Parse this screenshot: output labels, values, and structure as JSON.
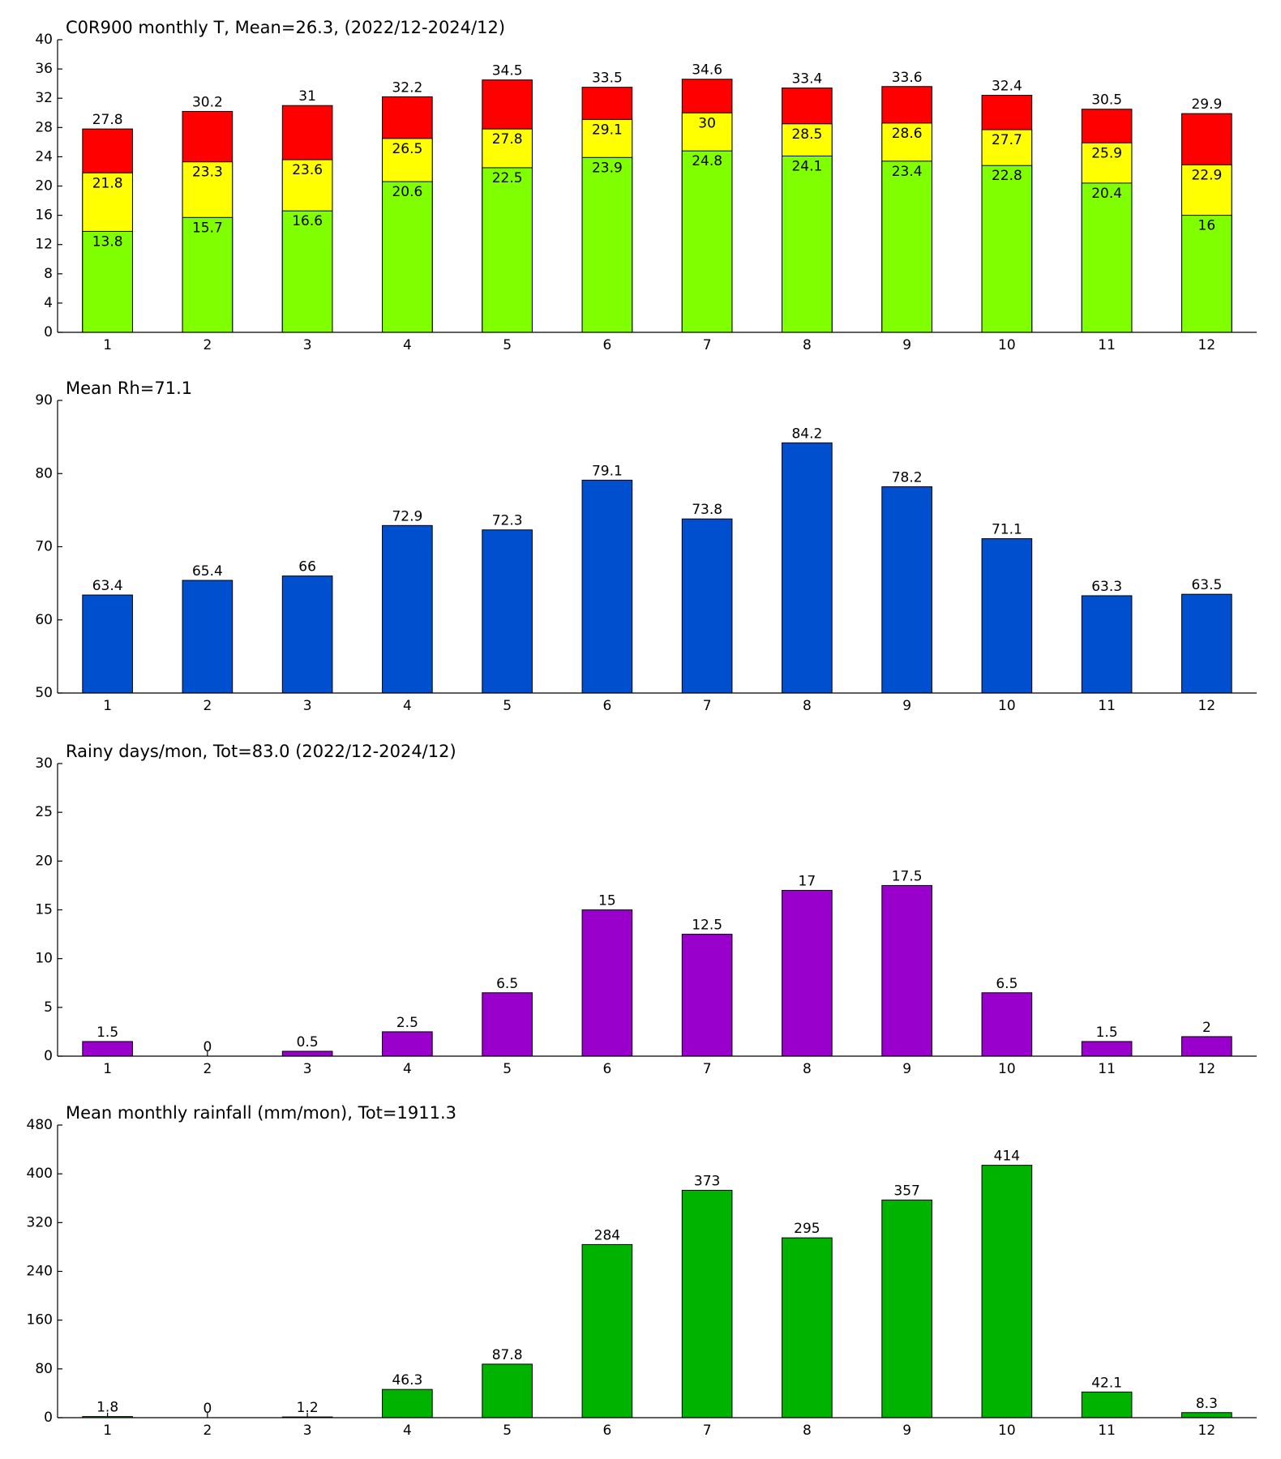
{
  "chart_data": [
    {
      "type": "bar",
      "title": "C0R900 monthly T, Mean=26.3, (2022/12-2024/12)",
      "categories": [
        "1",
        "2",
        "3",
        "4",
        "5",
        "6",
        "7",
        "8",
        "9",
        "10",
        "11",
        "12"
      ],
      "series": [
        {
          "color": "#ff0000",
          "values": [
            27.8,
            30.2,
            31,
            32.2,
            34.5,
            33.5,
            34.6,
            33.4,
            33.6,
            32.4,
            30.5,
            29.9
          ]
        },
        {
          "color": "#ffff00",
          "values": [
            21.8,
            23.3,
            23.6,
            26.5,
            27.8,
            29.1,
            30,
            28.5,
            28.6,
            27.7,
            25.9,
            22.9
          ]
        },
        {
          "color": "#80ff00",
          "values": [
            13.8,
            15.7,
            16.6,
            20.6,
            22.5,
            23.9,
            24.8,
            24.1,
            23.4,
            22.8,
            20.4,
            16
          ]
        }
      ],
      "ylim": [
        0,
        40
      ],
      "yticks": [
        0,
        4,
        8,
        12,
        16,
        20,
        24,
        28,
        32,
        36,
        40
      ]
    },
    {
      "type": "bar",
      "title": "Mean Rh=71.1",
      "categories": [
        "1",
        "2",
        "3",
        "4",
        "5",
        "6",
        "7",
        "8",
        "9",
        "10",
        "11",
        "12"
      ],
      "series": [
        {
          "color": "#004fcf",
          "values": [
            63.4,
            65.4,
            66,
            72.9,
            72.3,
            79.1,
            73.8,
            84.2,
            78.2,
            71.1,
            63.3,
            63.5
          ]
        }
      ],
      "ylim": [
        50,
        90
      ],
      "yticks": [
        50,
        60,
        70,
        80,
        90
      ]
    },
    {
      "type": "bar",
      "title": "Rainy days/mon, Tot=83.0 (2022/12-2024/12)",
      "categories": [
        "1",
        "2",
        "3",
        "4",
        "5",
        "6",
        "7",
        "8",
        "9",
        "10",
        "11",
        "12"
      ],
      "series": [
        {
          "color": "#9900cc",
          "values": [
            1.5,
            0,
            0.5,
            2.5,
            6.5,
            15,
            12.5,
            17,
            17.5,
            6.5,
            1.5,
            2
          ]
        }
      ],
      "ylim": [
        0,
        30
      ],
      "yticks": [
        0,
        5,
        10,
        15,
        20,
        25,
        30
      ]
    },
    {
      "type": "bar",
      "title": "Mean monthly rainfall (mm/mon), Tot=1911.3",
      "categories": [
        "1",
        "2",
        "3",
        "4",
        "5",
        "6",
        "7",
        "8",
        "9",
        "10",
        "11",
        "12"
      ],
      "series": [
        {
          "color": "#00b300",
          "values": [
            1.8,
            0,
            1.2,
            46.3,
            87.8,
            284,
            373,
            295,
            357,
            414,
            42.1,
            8.3
          ]
        }
      ],
      "ylim": [
        0,
        480
      ],
      "yticks": [
        0,
        80,
        160,
        240,
        320,
        400,
        480
      ]
    }
  ]
}
